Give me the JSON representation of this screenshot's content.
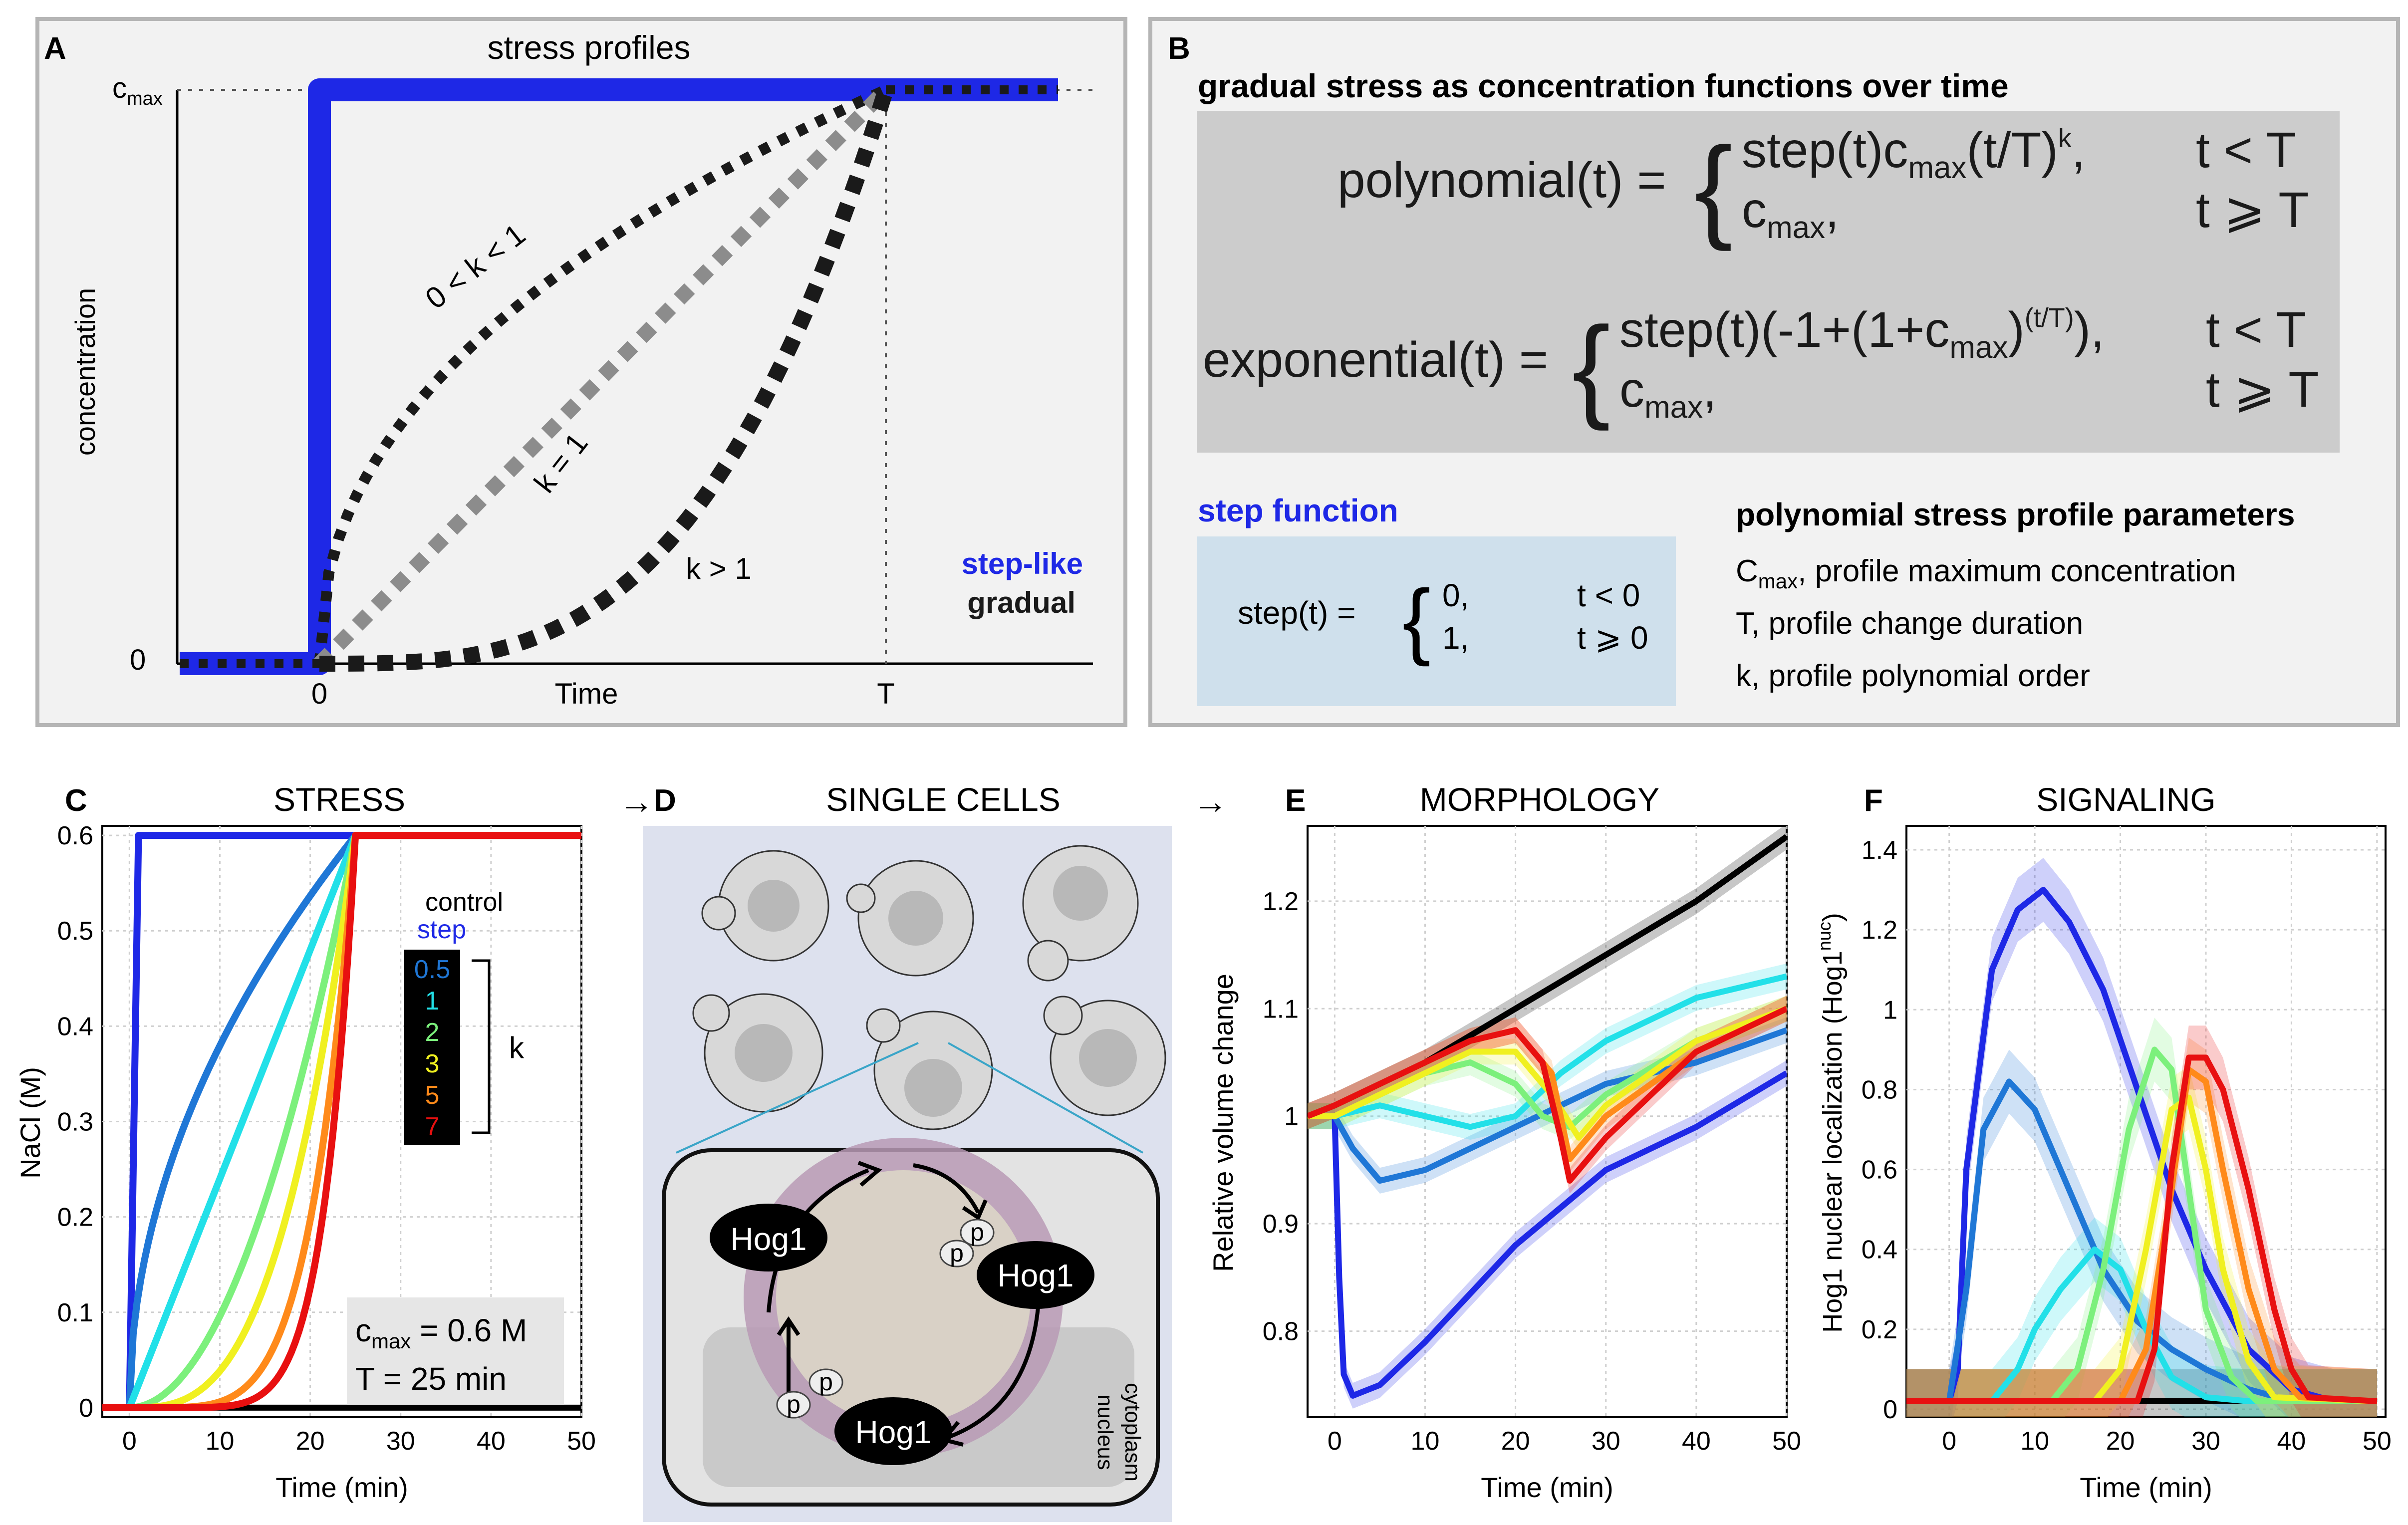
{
  "panels": {
    "A": {
      "letter": "A",
      "title": "stress profiles",
      "ylabel": "concentration",
      "xlabel": "Time",
      "y_ticks": [
        "c",
        "0"
      ],
      "y_tick_cmax_sub": "max",
      "x_ticks": [
        "0",
        "T"
      ],
      "annotations": [
        "0 < k < 1",
        "k = 1",
        "k > 1"
      ],
      "legend": {
        "step": "step-like",
        "gradual": "gradual"
      },
      "colors": {
        "step": "#1e28e6",
        "gradual": "#1a1a1a",
        "linear": "#8c8c8c"
      }
    },
    "B": {
      "letter": "B",
      "title": "gradual stress as concentration functions over time",
      "poly": {
        "lhs": "polynomial(t) =",
        "case1_a": "step(t)c",
        "case1_sub": "max",
        "case1_b": "(t/T)",
        "case1_sup": "k",
        "case1_c": ",",
        "case1_cond": "t < T",
        "case2_a": "c",
        "case2_sub": "max",
        "case2_b": ",",
        "case2_cond": "t ⩾ T"
      },
      "expo": {
        "lhs": "exponential(t) =",
        "case1_a": "step(t)(-1+(1+c",
        "case1_sub": "max",
        "case1_b": ")",
        "case1_sup": "(t/T)",
        "case1_c": "),",
        "case1_cond": "t < T",
        "case2_a": "c",
        "case2_sub": "max",
        "case2_b": ",",
        "case2_cond": "t ⩾ T"
      },
      "step_title": "step function",
      "step_lhs": "step(t) =",
      "step_cases": [
        {
          "val": "0,",
          "cond": "t < 0"
        },
        {
          "val": "1,",
          "cond": "t ⩾ 0"
        }
      ],
      "param_title": "polynomial stress profile parameters",
      "params": [
        {
          "a": "C",
          "sub": "max",
          "b": ", profile maximum concentration"
        },
        {
          "a": "T, profile change duration",
          "sub": "",
          "b": ""
        },
        {
          "a": "k, profile polynomial order",
          "sub": "",
          "b": ""
        }
      ]
    },
    "C": {
      "letter": "C",
      "title": "STRESS",
      "ylabel": "NaCl (M)",
      "xlabel": "Time (min)",
      "legend_control": "control",
      "legend_step": "step",
      "k_values": [
        "0.5",
        "1",
        "2",
        "3",
        "5",
        "7"
      ],
      "k_colors": [
        "#1f77d6",
        "#22e0e8",
        "#7cf07c",
        "#f0f020",
        "#ff8a1a",
        "#e81010"
      ],
      "k_label": "k",
      "cmax_a": "c",
      "cmax_sub": "max",
      "cmax_b": " = 0.6 M",
      "T_text": "T = 25 min"
    },
    "D": {
      "letter": "D",
      "title": "SINGLE CELLS",
      "proteins": [
        "Hog1",
        "Hog1",
        "Hog1"
      ],
      "phospho": "p",
      "compartments": [
        "nucleus",
        "cytoplasm"
      ]
    },
    "E": {
      "letter": "E",
      "title": "MORPHOLOGY",
      "ylabel": "Relative volume change",
      "xlabel": "Time (min)"
    },
    "F": {
      "letter": "F",
      "title": "SIGNALING",
      "ylabel": "Hog1 nuclear localization (Hog1",
      "ylabel_sup": "nuc",
      "ylabel_end": ")",
      "xlabel": "Time (min)"
    }
  },
  "chart_data": [
    {
      "panel": "C",
      "type": "line",
      "title": "STRESS",
      "xlabel": "Time (min)",
      "ylabel": "NaCl (M)",
      "xlim": [
        -3,
        50
      ],
      "ylim": [
        -0.01,
        0.61
      ],
      "x_ticks": [
        0,
        10,
        20,
        30,
        40,
        50
      ],
      "y_ticks": [
        0,
        0.1,
        0.2,
        0.3,
        0.4,
        0.5,
        0.6
      ],
      "grid": true,
      "cmax": 0.6,
      "T": 25,
      "series": [
        {
          "name": "control",
          "kind": "control",
          "color": "#000000"
        },
        {
          "name": "step",
          "kind": "step",
          "color": "#1e28e6"
        },
        {
          "name": "0.5",
          "kind": "poly",
          "k": 0.5,
          "color": "#1f77d6"
        },
        {
          "name": "1",
          "kind": "poly",
          "k": 1,
          "color": "#22e0e8"
        },
        {
          "name": "2",
          "kind": "poly",
          "k": 2,
          "color": "#7cf07c"
        },
        {
          "name": "3",
          "kind": "poly",
          "k": 3,
          "color": "#f0f020"
        },
        {
          "name": "5",
          "kind": "poly",
          "k": 5,
          "color": "#ff8a1a"
        },
        {
          "name": "7",
          "kind": "poly",
          "k": 7,
          "color": "#e81010"
        }
      ]
    },
    {
      "panel": "E",
      "type": "line",
      "title": "MORPHOLOGY",
      "xlabel": "Time (min)",
      "ylabel": "Relative volume change",
      "xlim": [
        -3,
        50
      ],
      "ylim": [
        0.72,
        1.27
      ],
      "x_ticks": [
        0,
        10,
        20,
        30,
        40,
        50
      ],
      "y_ticks": [
        0.8,
        0.9,
        1,
        1.1,
        1.2
      ],
      "grid": true,
      "series": [
        {
          "name": "control",
          "color": "#000000",
          "x": [
            -3,
            0,
            10,
            20,
            30,
            40,
            50
          ],
          "y": [
            1.0,
            1.01,
            1.05,
            1.1,
            1.15,
            1.2,
            1.26
          ]
        },
        {
          "name": "step",
          "color": "#1e28e6",
          "x": [
            -3,
            0,
            0.5,
            1,
            2,
            5,
            10,
            20,
            30,
            40,
            50
          ],
          "y": [
            1.0,
            1.0,
            0.85,
            0.76,
            0.74,
            0.75,
            0.79,
            0.88,
            0.95,
            0.99,
            1.04
          ]
        },
        {
          "name": "0.5",
          "color": "#1f77d6",
          "x": [
            -3,
            0,
            2,
            5,
            10,
            15,
            20,
            25,
            30,
            40,
            50
          ],
          "y": [
            1.0,
            1.0,
            0.97,
            0.94,
            0.95,
            0.97,
            0.99,
            1.01,
            1.03,
            1.05,
            1.08
          ]
        },
        {
          "name": "1",
          "color": "#22e0e8",
          "x": [
            -3,
            0,
            5,
            10,
            15,
            20,
            25,
            30,
            40,
            50
          ],
          "y": [
            1.0,
            1.0,
            1.01,
            1.0,
            0.99,
            1.0,
            1.04,
            1.07,
            1.11,
            1.13
          ]
        },
        {
          "name": "2",
          "color": "#7cf07c",
          "x": [
            -3,
            0,
            5,
            10,
            15,
            20,
            23,
            26,
            30,
            40,
            50
          ],
          "y": [
            1.0,
            1.0,
            1.02,
            1.04,
            1.05,
            1.03,
            1.0,
            0.99,
            1.02,
            1.07,
            1.1
          ]
        },
        {
          "name": "3",
          "color": "#f0f020",
          "x": [
            -3,
            0,
            5,
            10,
            15,
            20,
            24,
            27,
            30,
            40,
            50
          ],
          "y": [
            1.0,
            1.0,
            1.02,
            1.04,
            1.06,
            1.06,
            1.02,
            0.98,
            1.01,
            1.07,
            1.1
          ]
        },
        {
          "name": "5",
          "color": "#ff8a1a",
          "x": [
            -3,
            0,
            5,
            10,
            15,
            20,
            24,
            26,
            30,
            40,
            50
          ],
          "y": [
            1.0,
            1.01,
            1.03,
            1.05,
            1.07,
            1.08,
            1.04,
            0.96,
            1.0,
            1.06,
            1.1
          ]
        },
        {
          "name": "7",
          "color": "#e81010",
          "x": [
            -3,
            0,
            5,
            10,
            15,
            20,
            23,
            25,
            26,
            30,
            40,
            50
          ],
          "y": [
            1.0,
            1.01,
            1.03,
            1.05,
            1.07,
            1.08,
            1.05,
            0.98,
            0.94,
            0.98,
            1.06,
            1.1
          ]
        }
      ]
    },
    {
      "panel": "F",
      "type": "line",
      "title": "SIGNALING",
      "xlabel": "Time (min)",
      "ylabel": "Hog1 nuclear localization (Hog1nuc)",
      "xlim": [
        -5,
        51
      ],
      "ylim": [
        -0.02,
        1.46
      ],
      "x_ticks": [
        0,
        10,
        20,
        30,
        40,
        50
      ],
      "y_ticks": [
        0,
        0.2,
        0.4,
        0.6,
        0.8,
        1,
        1.2,
        1.4
      ],
      "grid": true,
      "series": [
        {
          "name": "control",
          "color": "#000000",
          "x": [
            -5,
            50
          ],
          "y": [
            0.02,
            0.02
          ]
        },
        {
          "name": "step",
          "color": "#1e28e6",
          "x": [
            -5,
            0,
            1,
            2,
            5,
            8,
            11,
            14,
            18,
            22,
            26,
            30,
            35,
            40,
            45,
            50
          ],
          "y": [
            0.02,
            0.02,
            0.1,
            0.6,
            1.1,
            1.25,
            1.3,
            1.22,
            1.05,
            0.8,
            0.55,
            0.35,
            0.15,
            0.05,
            0.02,
            0.02
          ]
        },
        {
          "name": "0.5",
          "color": "#1f77d6",
          "x": [
            -5,
            0,
            2,
            4,
            7,
            10,
            14,
            18,
            22,
            26,
            30,
            35,
            40,
            50
          ],
          "y": [
            0.02,
            0.02,
            0.3,
            0.7,
            0.82,
            0.75,
            0.55,
            0.35,
            0.22,
            0.15,
            0.1,
            0.05,
            0.02,
            0.02
          ]
        },
        {
          "name": "1",
          "color": "#22e0e8",
          "x": [
            -5,
            5,
            8,
            10,
            13,
            17,
            20,
            23,
            26,
            30,
            35,
            50
          ],
          "y": [
            0.02,
            0.02,
            0.1,
            0.2,
            0.3,
            0.4,
            0.35,
            0.2,
            0.08,
            0.03,
            0.02,
            0.02
          ]
        },
        {
          "name": "2",
          "color": "#7cf07c",
          "x": [
            -5,
            12,
            15,
            18,
            21,
            24,
            26,
            28,
            30,
            33,
            36,
            50
          ],
          "y": [
            0.02,
            0.02,
            0.1,
            0.35,
            0.7,
            0.9,
            0.85,
            0.55,
            0.25,
            0.08,
            0.02,
            0.02
          ]
        },
        {
          "name": "3",
          "color": "#f0f020",
          "x": [
            -5,
            17,
            20,
            23,
            26,
            28,
            30,
            32,
            35,
            38,
            50
          ],
          "y": [
            0.02,
            0.02,
            0.1,
            0.4,
            0.75,
            0.78,
            0.6,
            0.35,
            0.12,
            0.03,
            0.02
          ]
        },
        {
          "name": "5",
          "color": "#ff8a1a",
          "x": [
            -5,
            20,
            23,
            26,
            28,
            30,
            32,
            35,
            38,
            41,
            50
          ],
          "y": [
            0.02,
            0.02,
            0.15,
            0.55,
            0.85,
            0.82,
            0.6,
            0.3,
            0.1,
            0.03,
            0.02
          ]
        },
        {
          "name": "7",
          "color": "#e81010",
          "x": [
            -5,
            22,
            24,
            26,
            28,
            30,
            32,
            35,
            38,
            40,
            42,
            50
          ],
          "y": [
            0.02,
            0.02,
            0.15,
            0.6,
            0.88,
            0.88,
            0.8,
            0.55,
            0.25,
            0.1,
            0.03,
            0.02
          ]
        }
      ]
    }
  ]
}
